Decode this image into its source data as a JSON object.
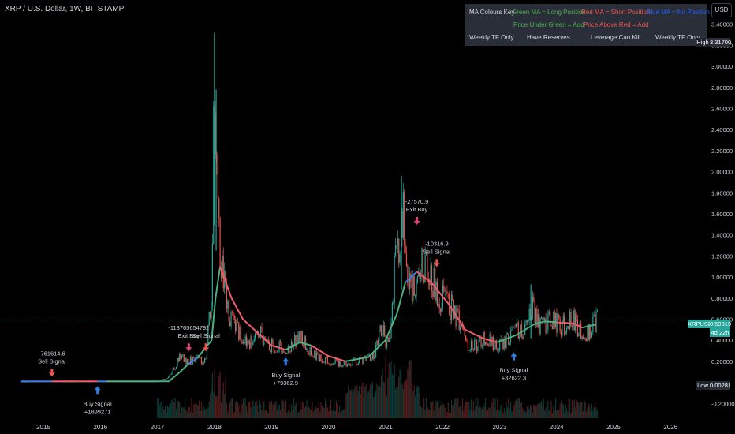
{
  "title": "XRP / U.S. Dollar, 1W, BITSTAMP",
  "currency_button": "USD",
  "key_table": {
    "row1": [
      "MA Colours Key",
      "Green MA = Long Position",
      "Red MA = Short Position",
      "Blue MA = No Position"
    ],
    "row2": [
      "Price Under Green = Add",
      "Price Above Red = Add"
    ],
    "row3": [
      "Weekly TF Only",
      "Have Reserves",
      "Leverage Can Kill",
      "Weekly TF Only"
    ]
  },
  "price_tags": {
    "high_label": "High",
    "high_value": "3.31700",
    "symbol": "XRPUSD",
    "last_value": "0.59319",
    "countdown": "4d 22h",
    "low_label": "Low",
    "low_value": "0.00281"
  },
  "colors": {
    "green": "#26a69a",
    "red": "#ef5350",
    "blue": "#2962ff",
    "ma_green": "#4caf7d",
    "ma_red": "#f05a6a",
    "ma_blue": "#3d7de0",
    "bg": "#000000",
    "panel": "#2a2e39"
  },
  "chart_data": {
    "type": "candlestick",
    "x_unit": "year",
    "x_ticks": [
      "2015",
      "2016",
      "2017",
      "2018",
      "2019",
      "2020",
      "2021",
      "2022",
      "2023",
      "2024",
      "2025",
      "2026"
    ],
    "y_ticks": [
      "3.40000",
      "3.20000",
      "3.00000",
      "2.80000",
      "2.60000",
      "2.40000",
      "2.20000",
      "2.00000",
      "1.80000",
      "1.60000",
      "1.40000",
      "1.20000",
      "1.00000",
      "0.80000",
      "0.60000",
      "0.40000",
      "0.20000",
      "-0.20000"
    ],
    "ylim": [
      -0.22,
      3.42
    ],
    "price_path": [
      [
        2014.6,
        0.005
      ],
      [
        2015.0,
        0.006
      ],
      [
        2015.5,
        0.006
      ],
      [
        2016.0,
        0.006
      ],
      [
        2016.5,
        0.006
      ],
      [
        2017.0,
        0.006
      ],
      [
        2017.2,
        0.05
      ],
      [
        2017.4,
        0.25
      ],
      [
        2017.5,
        0.2
      ],
      [
        2017.7,
        0.22
      ],
      [
        2017.85,
        0.2
      ],
      [
        2017.95,
        0.9
      ],
      [
        2018.0,
        3.0
      ],
      [
        2018.05,
        1.6
      ],
      [
        2018.15,
        1.0
      ],
      [
        2018.25,
        0.65
      ],
      [
        2018.4,
        0.5
      ],
      [
        2018.6,
        0.35
      ],
      [
        2018.75,
        0.55
      ],
      [
        2018.9,
        0.35
      ],
      [
        2019.0,
        0.35
      ],
      [
        2019.3,
        0.32
      ],
      [
        2019.5,
        0.45
      ],
      [
        2019.7,
        0.28
      ],
      [
        2019.9,
        0.22
      ],
      [
        2020.2,
        0.18
      ],
      [
        2020.5,
        0.2
      ],
      [
        2020.8,
        0.25
      ],
      [
        2020.95,
        0.55
      ],
      [
        2021.0,
        0.3
      ],
      [
        2021.1,
        0.5
      ],
      [
        2021.15,
        1.0
      ],
      [
        2021.3,
        1.6
      ],
      [
        2021.45,
        0.8
      ],
      [
        2021.6,
        1.2
      ],
      [
        2021.75,
        1.05
      ],
      [
        2021.95,
        0.8
      ],
      [
        2022.1,
        0.75
      ],
      [
        2022.3,
        0.6
      ],
      [
        2022.4,
        0.35
      ],
      [
        2022.6,
        0.35
      ],
      [
        2022.75,
        0.45
      ],
      [
        2022.9,
        0.35
      ],
      [
        2023.1,
        0.38
      ],
      [
        2023.3,
        0.5
      ],
      [
        2023.5,
        0.5
      ],
      [
        2023.55,
        0.75
      ],
      [
        2023.7,
        0.52
      ],
      [
        2023.9,
        0.6
      ],
      [
        2024.1,
        0.52
      ],
      [
        2024.25,
        0.62
      ],
      [
        2024.4,
        0.5
      ],
      [
        2024.55,
        0.47
      ],
      [
        2024.7,
        0.59
      ]
    ],
    "spikes": [
      [
        2018.0,
        3.317
      ],
      [
        2021.28,
        1.96
      ],
      [
        2018.03,
        2.78
      ],
      [
        2023.55,
        0.93
      ]
    ],
    "ma_segments": [
      {
        "color": "blue",
        "points": [
          [
            2014.6,
            0.01
          ],
          [
            2015.15,
            0.01
          ]
        ]
      },
      {
        "color": "red",
        "points": [
          [
            2015.15,
            0.01
          ],
          [
            2015.95,
            0.01
          ]
        ]
      },
      {
        "color": "blue",
        "points": [
          [
            2015.95,
            0.01
          ],
          [
            2016.1,
            0.01
          ]
        ]
      },
      {
        "color": "green",
        "points": [
          [
            2016.1,
            0.01
          ],
          [
            2017.2,
            0.01
          ],
          [
            2017.4,
            0.1
          ],
          [
            2017.55,
            0.18
          ]
        ]
      },
      {
        "color": "blue",
        "points": [
          [
            2017.55,
            0.18
          ],
          [
            2017.7,
            0.23
          ]
        ]
      },
      {
        "color": "green",
        "points": [
          [
            2017.7,
            0.23
          ],
          [
            2017.95,
            0.4
          ],
          [
            2018.02,
            0.8
          ],
          [
            2018.1,
            1.1
          ]
        ]
      },
      {
        "color": "red",
        "points": [
          [
            2018.1,
            1.1
          ],
          [
            2018.3,
            0.8
          ],
          [
            2018.5,
            0.6
          ],
          [
            2018.8,
            0.45
          ],
          [
            2019.0,
            0.35
          ],
          [
            2019.25,
            0.31
          ]
        ]
      },
      {
        "color": "green",
        "points": [
          [
            2019.25,
            0.31
          ],
          [
            2019.5,
            0.38
          ],
          [
            2019.7,
            0.35
          ]
        ]
      },
      {
        "color": "red",
        "points": [
          [
            2019.7,
            0.35
          ],
          [
            2020.0,
            0.25
          ],
          [
            2020.3,
            0.2
          ]
        ]
      },
      {
        "color": "green",
        "points": [
          [
            2020.3,
            0.2
          ],
          [
            2020.7,
            0.24
          ],
          [
            2021.0,
            0.4
          ],
          [
            2021.2,
            0.65
          ],
          [
            2021.35,
            0.95
          ]
        ]
      },
      {
        "color": "blue",
        "points": [
          [
            2021.35,
            0.95
          ],
          [
            2021.55,
            1.05
          ]
        ]
      },
      {
        "color": "red",
        "points": [
          [
            2021.55,
            1.05
          ],
          [
            2021.8,
            0.95
          ],
          [
            2022.1,
            0.75
          ],
          [
            2022.4,
            0.5
          ],
          [
            2022.7,
            0.42
          ],
          [
            2022.95,
            0.38
          ]
        ]
      },
      {
        "color": "green",
        "points": [
          [
            2022.95,
            0.38
          ],
          [
            2023.3,
            0.45
          ],
          [
            2023.6,
            0.55
          ],
          [
            2023.8,
            0.58
          ],
          [
            2024.0,
            0.57
          ]
        ]
      },
      {
        "color": "red",
        "points": [
          [
            2024.0,
            0.57
          ],
          [
            2024.3,
            0.56
          ],
          [
            2024.45,
            0.52
          ]
        ]
      },
      {
        "color": "green",
        "points": [
          [
            2024.45,
            0.52
          ],
          [
            2024.7,
            0.55
          ]
        ]
      }
    ],
    "current_price": 0.59319,
    "signals": [
      {
        "type": "sell",
        "lines": [
          "-761614.6",
          "Sell Signal"
        ],
        "x": 2015.15,
        "y": 0.01
      },
      {
        "type": "buy",
        "lines": [
          "Buy Signal",
          "+1899271"
        ],
        "x": 2015.95,
        "y": 0.01
      },
      {
        "type": "exit",
        "lines": [
          "-113765654792",
          "Exit Buy"
        ],
        "x": 2017.55,
        "y": 0.25
      },
      {
        "type": "sell",
        "lines": [
          "Sell Signal"
        ],
        "x": 2017.85,
        "y": 0.25
      },
      {
        "type": "buy",
        "lines": [
          "Buy Signal",
          "+79362.9"
        ],
        "x": 2019.25,
        "y": 0.28
      },
      {
        "type": "exit",
        "lines": [
          "-27570.9",
          "Exit Buy"
        ],
        "x": 2021.55,
        "y": 1.45
      },
      {
        "type": "sell",
        "lines": [
          "-10316.9",
          "Sell Signal"
        ],
        "x": 2021.9,
        "y": 1.05
      },
      {
        "type": "buy",
        "lines": [
          "Buy Signal",
          "+32622.3"
        ],
        "x": 2023.25,
        "y": 0.33
      }
    ]
  }
}
